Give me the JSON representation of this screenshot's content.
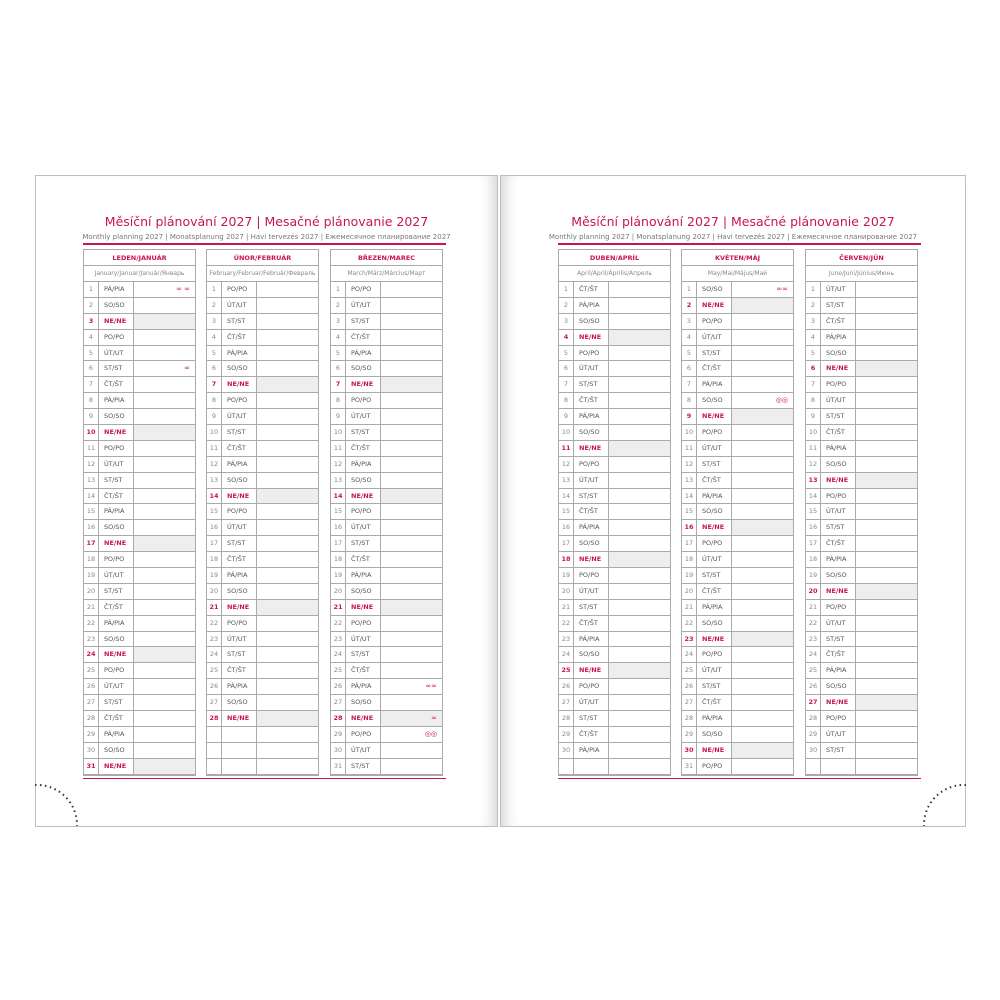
{
  "left": {
    "title": "Měsíční plánování 2027 | Mesačné plánovanie 2027",
    "subtitle": "Monthly planning 2027 | Monatsplanung 2027 | Havi tervezés 2027 | Ежемесячное планирование 2027"
  },
  "right": {
    "title": "Měsíční plánování 2027 | Mesačné plánovanie 2027",
    "subtitle": "Monthly planning 2027 | Monatsplanung 2027 | Havi tervezés 2027 | Ежемесячное планирование 2027"
  },
  "accent": "#c8174b",
  "months": [
    {
      "name": "LEDEN/JANUÁR",
      "sub": "January/Januar/Január/Январь",
      "start": 4,
      "days": 31,
      "marks": {
        "1": "∞ ∞",
        "6": "∞"
      }
    },
    {
      "name": "ÚNOR/FEBRUÁR",
      "sub": "February/Februar/Február/Февраль",
      "start": 0,
      "days": 28,
      "marks": {}
    },
    {
      "name": "BŘEZEN/MAREC",
      "sub": "March/März/Március/Март",
      "start": 0,
      "days": 31,
      "marks": {
        "26": "∞∞",
        "28": "∞",
        "29": "◎◎"
      }
    },
    {
      "name": "DUBEN/APRÍL",
      "sub": "April/April/Április/Апрель",
      "start": 3,
      "days": 30,
      "marks": {}
    },
    {
      "name": "KVĚTEN/MÁJ",
      "sub": "May/Mai/Május/Май",
      "start": 5,
      "days": 31,
      "marks": {
        "1": "∞∞",
        "8": "◎◎"
      }
    },
    {
      "name": "ČERVEN/JÚN",
      "sub": "June/Juni/Június/Июнь",
      "start": 1,
      "days": 30,
      "marks": {}
    }
  ],
  "weekdays": [
    "PO/PO",
    "ÚT/UT",
    "ST/ST",
    "ČT/ŠT",
    "PÁ/PIA",
    "SO/SO",
    "NE/NE"
  ]
}
